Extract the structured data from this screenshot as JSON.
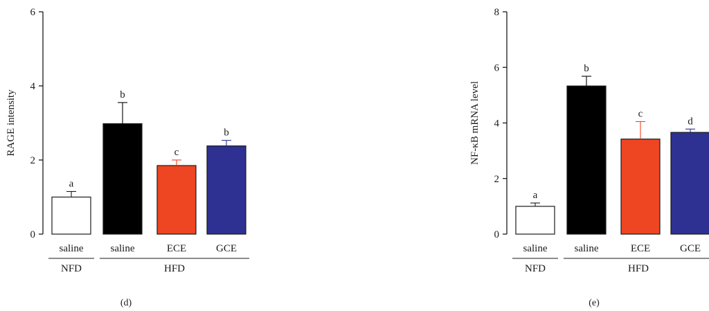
{
  "chart_data": [
    {
      "type": "bar",
      "panel_label": "(d)",
      "ylabel": "RAGE intensity",
      "ylim": [
        0,
        6
      ],
      "yticks": [
        0,
        2,
        4,
        6
      ],
      "categories": [
        "saline",
        "saline",
        "ECE",
        "GCE"
      ],
      "groups": [
        {
          "label": "NFD",
          "members": [
            0
          ]
        },
        {
          "label": "HFD",
          "members": [
            1,
            2,
            3
          ]
        }
      ],
      "values": [
        1.0,
        2.98,
        1.85,
        2.38
      ],
      "errors": [
        0.15,
        0.57,
        0.15,
        0.15
      ],
      "letters": [
        "a",
        "b",
        "c",
        "b"
      ],
      "colors": [
        "#ffffff",
        "#000000",
        "#ee4523",
        "#2e3191"
      ],
      "grid": false
    },
    {
      "type": "bar",
      "panel_label": "(e)",
      "ylabel": "NF-κB mRNA level",
      "ylim": [
        0,
        8
      ],
      "yticks": [
        0,
        2,
        4,
        6,
        8
      ],
      "categories": [
        "saline",
        "saline",
        "ECE",
        "GCE"
      ],
      "groups": [
        {
          "label": "NFD",
          "members": [
            0
          ]
        },
        {
          "label": "HFD",
          "members": [
            1,
            2,
            3
          ]
        }
      ],
      "values": [
        1.0,
        5.33,
        3.42,
        3.66
      ],
      "errors": [
        0.12,
        0.35,
        0.63,
        0.12
      ],
      "letters": [
        "a",
        "b",
        "c",
        "d"
      ],
      "colors": [
        "#ffffff",
        "#000000",
        "#ee4523",
        "#2e3191"
      ],
      "grid": false
    }
  ]
}
